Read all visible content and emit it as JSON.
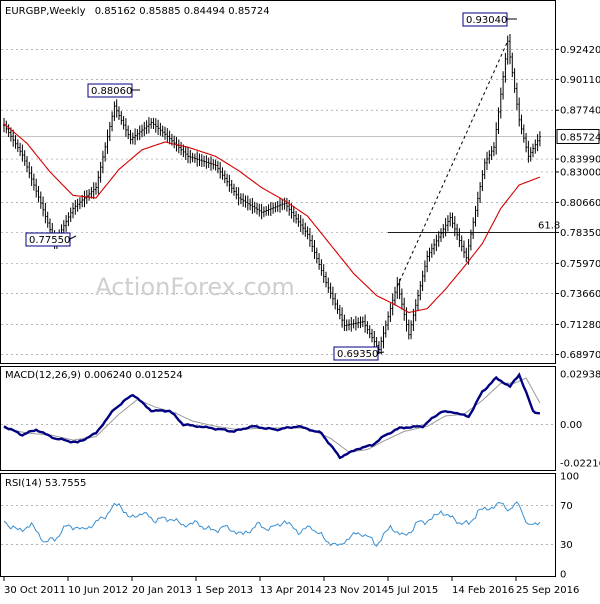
{
  "chart_data": {
    "type": "ohlc",
    "title": "EURGBP,Weekly",
    "ohlc_header": "0.85162 0.85885 0.84494 0.85724",
    "watermark": "ActionForex.com",
    "last_price": "0.85724",
    "price_axis": {
      "ylim": [
        0.6855,
        0.9575
      ],
      "ticks": [
        "0.92420",
        "0.90110",
        "0.87740",
        "0.83990",
        "0.83000",
        "0.80660",
        "0.78350",
        "0.75970",
        "0.73660",
        "0.71280",
        "0.68970"
      ]
    },
    "x_axis": {
      "tick_labels": [
        "30 Oct 2011",
        "10 Jun 2012",
        "20 Jan 2013",
        "1 Sep 2013",
        "13 Apr 2014",
        "23 Nov 2014",
        "5 Jul 2015",
        "14 Feb 2016",
        "25 Sep 2016"
      ]
    },
    "annotations": [
      {
        "text": "0.88060",
        "kind": "peak"
      },
      {
        "text": "0.77550",
        "kind": "trough"
      },
      {
        "text": "0.69350",
        "kind": "trough"
      },
      {
        "text": "0.93040",
        "kind": "peak"
      },
      {
        "text": "61.8",
        "kind": "fibonacci_retracement",
        "level": 0.7835
      }
    ],
    "price_anchors": [
      {
        "week": 0,
        "value": 0.866
      },
      {
        "week": 8,
        "value": 0.843
      },
      {
        "week": 16,
        "value": 0.806
      },
      {
        "week": 22,
        "value": 0.7755
      },
      {
        "week": 30,
        "value": 0.802
      },
      {
        "week": 40,
        "value": 0.818
      },
      {
        "week": 48,
        "value": 0.8806
      },
      {
        "week": 55,
        "value": 0.855
      },
      {
        "week": 64,
        "value": 0.868
      },
      {
        "week": 70,
        "value": 0.859
      },
      {
        "week": 80,
        "value": 0.842
      },
      {
        "week": 92,
        "value": 0.835
      },
      {
        "week": 102,
        "value": 0.81
      },
      {
        "week": 112,
        "value": 0.799
      },
      {
        "week": 122,
        "value": 0.806
      },
      {
        "week": 132,
        "value": 0.782
      },
      {
        "week": 140,
        "value": 0.745
      },
      {
        "week": 148,
        "value": 0.712
      },
      {
        "week": 156,
        "value": 0.715
      },
      {
        "week": 163,
        "value": 0.6935
      },
      {
        "week": 171,
        "value": 0.744
      },
      {
        "week": 176,
        "value": 0.705
      },
      {
        "week": 184,
        "value": 0.765
      },
      {
        "week": 194,
        "value": 0.795
      },
      {
        "week": 201,
        "value": 0.764
      },
      {
        "week": 209,
        "value": 0.837
      },
      {
        "week": 213,
        "value": 0.849
      },
      {
        "week": 219,
        "value": 0.9304
      },
      {
        "week": 224,
        "value": 0.87
      },
      {
        "week": 228,
        "value": 0.842
      },
      {
        "week": 233,
        "value": 0.857
      }
    ],
    "moving_average_anchors": [
      {
        "week": 0,
        "value": 0.867
      },
      {
        "week": 10,
        "value": 0.852
      },
      {
        "week": 20,
        "value": 0.83
      },
      {
        "week": 30,
        "value": 0.812
      },
      {
        "week": 40,
        "value": 0.81
      },
      {
        "week": 50,
        "value": 0.832
      },
      {
        "week": 60,
        "value": 0.847
      },
      {
        "week": 70,
        "value": 0.853
      },
      {
        "week": 80,
        "value": 0.849
      },
      {
        "week": 92,
        "value": 0.842
      },
      {
        "week": 102,
        "value": 0.831
      },
      {
        "week": 112,
        "value": 0.818
      },
      {
        "week": 122,
        "value": 0.808
      },
      {
        "week": 132,
        "value": 0.796
      },
      {
        "week": 142,
        "value": 0.774
      },
      {
        "week": 152,
        "value": 0.752
      },
      {
        "week": 162,
        "value": 0.735
      },
      {
        "week": 170,
        "value": 0.728
      },
      {
        "week": 176,
        "value": 0.722
      },
      {
        "week": 184,
        "value": 0.725
      },
      {
        "week": 192,
        "value": 0.74
      },
      {
        "week": 200,
        "value": 0.757
      },
      {
        "week": 208,
        "value": 0.775
      },
      {
        "week": 216,
        "value": 0.802
      },
      {
        "week": 224,
        "value": 0.82
      },
      {
        "week": 233,
        "value": 0.826
      }
    ],
    "macd": {
      "label": "MACD(12,26,9) 0.006240 0.012524",
      "ticks": [
        "0.029387",
        "0.00",
        "-0.022161"
      ],
      "ylim": [
        -0.0252,
        0.0322
      ],
      "main_anchors": [
        {
          "week": 0,
          "value": -0.001
        },
        {
          "week": 8,
          "value": -0.006
        },
        {
          "week": 14,
          "value": -0.003
        },
        {
          "week": 22,
          "value": -0.008
        },
        {
          "week": 32,
          "value": -0.0105
        },
        {
          "week": 40,
          "value": -0.005
        },
        {
          "week": 48,
          "value": 0.009
        },
        {
          "week": 56,
          "value": 0.0175
        },
        {
          "week": 64,
          "value": 0.008
        },
        {
          "week": 72,
          "value": 0.008
        },
        {
          "week": 78,
          "value": 0.0
        },
        {
          "week": 90,
          "value": -0.002
        },
        {
          "week": 100,
          "value": -0.004
        },
        {
          "week": 108,
          "value": -0.001
        },
        {
          "week": 118,
          "value": -0.003
        },
        {
          "week": 128,
          "value": -0.001
        },
        {
          "week": 138,
          "value": -0.005
        },
        {
          "week": 146,
          "value": -0.019
        },
        {
          "week": 154,
          "value": -0.014
        },
        {
          "week": 160,
          "value": -0.012
        },
        {
          "week": 166,
          "value": -0.006
        },
        {
          "week": 172,
          "value": -0.002
        },
        {
          "week": 182,
          "value": -0.001
        },
        {
          "week": 190,
          "value": 0.0075
        },
        {
          "week": 196,
          "value": 0.007
        },
        {
          "week": 202,
          "value": 0.0045
        },
        {
          "week": 208,
          "value": 0.019
        },
        {
          "week": 214,
          "value": 0.027
        },
        {
          "week": 220,
          "value": 0.022
        },
        {
          "week": 224,
          "value": 0.029
        },
        {
          "week": 230,
          "value": 0.008
        },
        {
          "week": 233,
          "value": 0.0062
        }
      ],
      "signal_anchors": [
        {
          "week": 0,
          "value": -0.002
        },
        {
          "week": 10,
          "value": -0.005
        },
        {
          "week": 20,
          "value": -0.006
        },
        {
          "week": 30,
          "value": -0.009
        },
        {
          "week": 40,
          "value": -0.007
        },
        {
          "week": 50,
          "value": 0.006
        },
        {
          "week": 58,
          "value": 0.0145
        },
        {
          "week": 66,
          "value": 0.01
        },
        {
          "week": 74,
          "value": 0.007
        },
        {
          "week": 82,
          "value": 0.002
        },
        {
          "week": 92,
          "value": -0.001
        },
        {
          "week": 102,
          "value": -0.003
        },
        {
          "week": 112,
          "value": -0.002
        },
        {
          "week": 122,
          "value": -0.002
        },
        {
          "week": 132,
          "value": -0.002
        },
        {
          "week": 142,
          "value": -0.008
        },
        {
          "week": 150,
          "value": -0.016
        },
        {
          "week": 158,
          "value": -0.0145
        },
        {
          "week": 166,
          "value": -0.009
        },
        {
          "week": 174,
          "value": -0.004
        },
        {
          "week": 184,
          "value": -0.001
        },
        {
          "week": 192,
          "value": 0.005
        },
        {
          "week": 200,
          "value": 0.006
        },
        {
          "week": 208,
          "value": 0.014
        },
        {
          "week": 216,
          "value": 0.024
        },
        {
          "week": 222,
          "value": 0.024
        },
        {
          "week": 227,
          "value": 0.027
        },
        {
          "week": 233,
          "value": 0.0125
        }
      ]
    },
    "rsi": {
      "label": "RSI(14) 53.7555",
      "ticks": [
        "100",
        "70",
        "30",
        "0"
      ],
      "ylim": [
        0,
        100
      ],
      "levels": [
        70,
        30
      ],
      "anchors": [
        {
          "week": 0,
          "value": 54
        },
        {
          "week": 6,
          "value": 44
        },
        {
          "week": 12,
          "value": 50
        },
        {
          "week": 18,
          "value": 32
        },
        {
          "week": 22,
          "value": 36
        },
        {
          "week": 28,
          "value": 50
        },
        {
          "week": 34,
          "value": 45
        },
        {
          "week": 40,
          "value": 52
        },
        {
          "week": 46,
          "value": 64
        },
        {
          "week": 50,
          "value": 73
        },
        {
          "week": 54,
          "value": 57
        },
        {
          "week": 60,
          "value": 62
        },
        {
          "week": 66,
          "value": 55
        },
        {
          "week": 72,
          "value": 57
        },
        {
          "week": 78,
          "value": 50
        },
        {
          "week": 84,
          "value": 52
        },
        {
          "week": 90,
          "value": 44
        },
        {
          "week": 96,
          "value": 48
        },
        {
          "week": 104,
          "value": 40
        },
        {
          "week": 110,
          "value": 50
        },
        {
          "week": 116,
          "value": 46
        },
        {
          "week": 122,
          "value": 54
        },
        {
          "week": 128,
          "value": 43
        },
        {
          "week": 134,
          "value": 48
        },
        {
          "week": 140,
          "value": 34
        },
        {
          "week": 146,
          "value": 28
        },
        {
          "week": 150,
          "value": 38
        },
        {
          "week": 156,
          "value": 42
        },
        {
          "week": 162,
          "value": 30
        },
        {
          "week": 168,
          "value": 48
        },
        {
          "week": 174,
          "value": 38
        },
        {
          "week": 180,
          "value": 52
        },
        {
          "week": 186,
          "value": 56
        },
        {
          "week": 190,
          "value": 64
        },
        {
          "week": 196,
          "value": 55
        },
        {
          "week": 202,
          "value": 50
        },
        {
          "week": 206,
          "value": 64
        },
        {
          "week": 212,
          "value": 68
        },
        {
          "week": 216,
          "value": 72
        },
        {
          "week": 220,
          "value": 66
        },
        {
          "week": 224,
          "value": 72
        },
        {
          "week": 228,
          "value": 48
        },
        {
          "week": 233,
          "value": 54
        }
      ]
    },
    "colors": {
      "bars": "#000000",
      "moving_average": "#d40000",
      "macd_main": "#000080",
      "macd_signal": "#9a9a9a",
      "rsi": "#3a8fd0",
      "label_border": "#000080"
    }
  }
}
